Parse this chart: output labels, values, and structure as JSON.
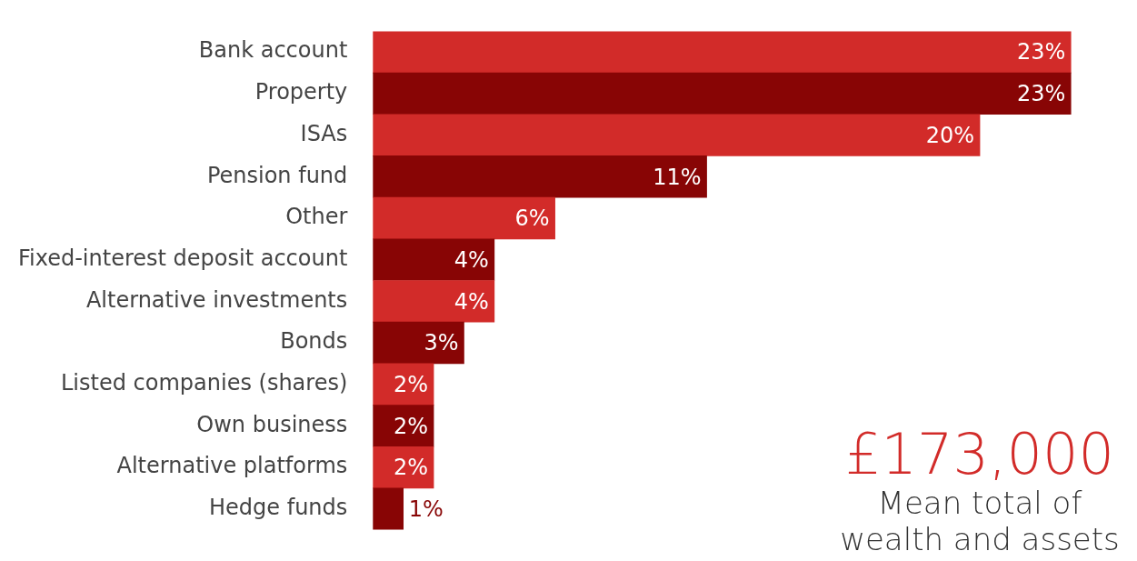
{
  "chart_data": {
    "type": "bar",
    "orientation": "horizontal",
    "categories": [
      "Bank account",
      "Property",
      "ISAs",
      "Pension fund",
      "Other",
      "Fixed-interest deposit account",
      "Alternative investments",
      "Bonds",
      "Listed companies (shares)",
      "Own business",
      "Alternative platforms",
      "Hedge funds"
    ],
    "values": [
      23,
      23,
      20,
      11,
      6,
      4,
      4,
      3,
      2,
      2,
      2,
      1
    ],
    "value_labels": [
      "23%",
      "23%",
      "20%",
      "11%",
      "6%",
      "4%",
      "4%",
      "3%",
      "2%",
      "2%",
      "2%",
      "1%"
    ],
    "colors": [
      "#d22b29",
      "#880505",
      "#d22b29",
      "#880505",
      "#d22b29",
      "#880505",
      "#d22b29",
      "#880505",
      "#d22b29",
      "#880505",
      "#d22b29",
      "#880505"
    ],
    "annotations": [
      "£173,000",
      "Mean total of wealth and assets"
    ]
  }
}
